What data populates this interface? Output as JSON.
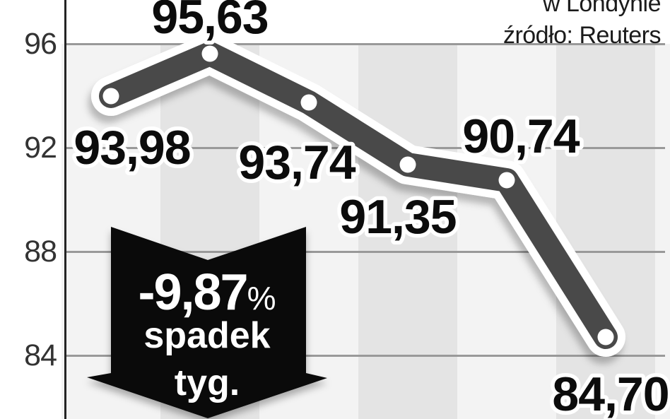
{
  "header": {
    "location": "w Londynie",
    "source": "źródło: Reuters"
  },
  "annotation": {
    "value": "-9,87",
    "unit": "%",
    "line2": "spadek",
    "line3": "tyg."
  },
  "chart_data": {
    "type": "line",
    "values": [
      93.98,
      95.63,
      93.74,
      91.35,
      90.74,
      84.7
    ],
    "point_labels": [
      "93,98",
      "95,63",
      "93,74",
      "91,35",
      "90,74",
      "84,70"
    ],
    "y_ticks": [
      96,
      92,
      88,
      84
    ],
    "ylim": [
      81.6,
      97.7
    ],
    "xlabel": "",
    "ylabel": "",
    "grid": "horizontal gridlines at ticks",
    "legend": "none",
    "background": "alternating light/dark vertical stripes, one per data point",
    "annotations": [
      "-9,87% spadek tyg.",
      "w Londynie",
      "źródło: Reuters"
    ]
  },
  "colors": {
    "line": "#4a4a4a",
    "dot": "#ffffff",
    "grid": "#999999",
    "axis": "#242424",
    "stripe_light": "#f3f3f3",
    "stripe_dark": "#e4e4e4",
    "arrow": "#0a0a0a",
    "label_text": "#0c0c0c"
  }
}
